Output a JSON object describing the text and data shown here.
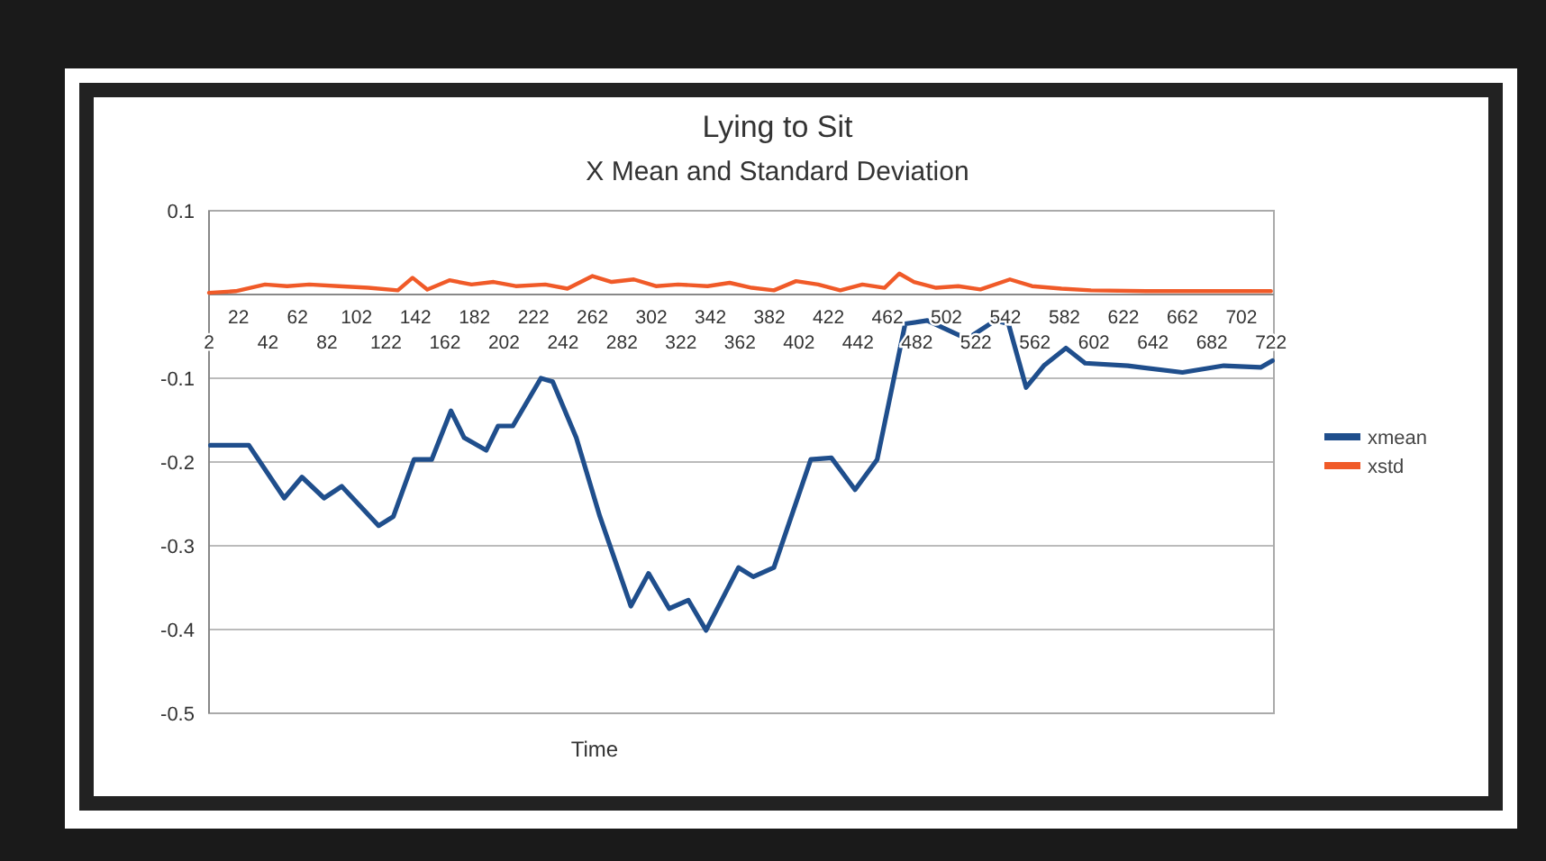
{
  "chart_data": {
    "type": "line",
    "title": "Lying to Sit",
    "subtitle": "X Mean and Standard Deviation",
    "xlabel": "Time",
    "xlim": [
      2,
      724
    ],
    "xticks": [
      2,
      42,
      82,
      122,
      162,
      202,
      242,
      282,
      322,
      362,
      402,
      442,
      482,
      522,
      562,
      602,
      642,
      682,
      722
    ],
    "x2lim": [
      2,
      724
    ],
    "x2ticks": [
      22,
      62,
      102,
      142,
      182,
      222,
      262,
      302,
      342,
      382,
      422,
      462,
      502,
      542,
      582,
      622,
      662,
      702
    ],
    "ylim": [
      -0.5,
      0.1
    ],
    "yticks": [
      0.1,
      {
        "value": 0,
        "label": null
      },
      -0.1,
      -0.2,
      -0.3,
      -0.4,
      -0.5
    ],
    "grid": "y",
    "legend": "right",
    "line_style": "solid",
    "marker": "none",
    "series": [
      {
        "name": "xmean",
        "color": "#1f4e8c",
        "x": [
          3,
          29,
          53,
          65,
          80,
          92,
          117,
          127,
          141,
          153,
          166,
          175,
          190,
          198,
          208,
          227,
          235,
          251,
          267,
          288,
          300,
          314,
          327,
          339,
          361,
          371,
          385,
          410,
          424,
          440,
          455,
          474,
          489,
          516,
          535,
          544,
          556,
          568,
          583,
          596,
          625,
          662,
          690,
          715,
          723
        ],
        "values": [
          -0.18,
          -0.18,
          -0.243,
          -0.218,
          -0.243,
          -0.229,
          -0.276,
          -0.265,
          -0.197,
          -0.197,
          -0.139,
          -0.171,
          -0.186,
          -0.157,
          -0.157,
          -0.1,
          -0.104,
          -0.171,
          -0.265,
          -0.372,
          -0.333,
          -0.375,
          -0.365,
          -0.401,
          -0.326,
          -0.337,
          -0.326,
          -0.197,
          -0.195,
          -0.233,
          -0.197,
          -0.035,
          -0.031,
          -0.053,
          -0.031,
          -0.035,
          -0.111,
          -0.085,
          -0.064,
          -0.082,
          -0.085,
          -0.093,
          -0.085,
          -0.087,
          -0.079
        ]
      },
      {
        "name": "xstd",
        "color": "#f05a28",
        "x": [
          2,
          20,
          40,
          55,
          70,
          90,
          110,
          130,
          140,
          150,
          165,
          180,
          195,
          210,
          230,
          245,
          262,
          275,
          290,
          305,
          320,
          340,
          355,
          370,
          385,
          400,
          415,
          430,
          445,
          460,
          470,
          480,
          495,
          510,
          525,
          545,
          560,
          580,
          600,
          640,
          670,
          700,
          722
        ],
        "values": [
          0.002,
          0.004,
          0.012,
          0.01,
          0.012,
          0.01,
          0.008,
          0.005,
          0.02,
          0.006,
          0.017,
          0.012,
          0.015,
          0.01,
          0.012,
          0.007,
          0.022,
          0.015,
          0.018,
          0.01,
          0.012,
          0.01,
          0.014,
          0.008,
          0.005,
          0.016,
          0.012,
          0.005,
          0.012,
          0.008,
          0.025,
          0.015,
          0.008,
          0.01,
          0.006,
          0.018,
          0.01,
          0.007,
          0.005,
          0.004,
          0.004,
          0.004,
          0.004
        ]
      }
    ]
  }
}
